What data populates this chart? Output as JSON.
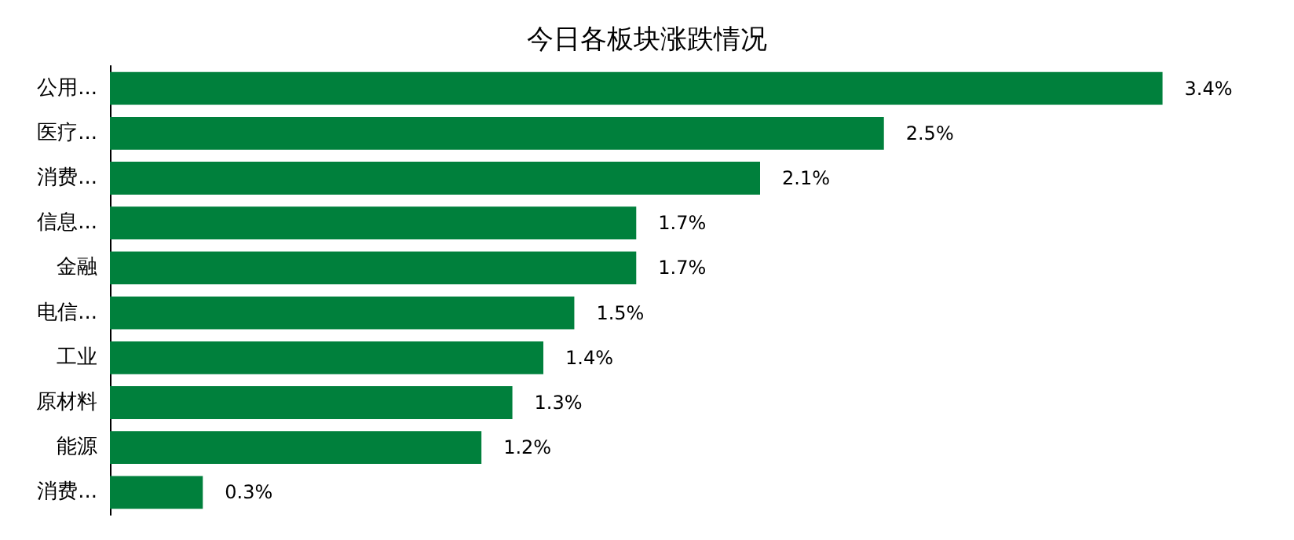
{
  "chart_data": {
    "type": "bar",
    "orientation": "horizontal",
    "title": "今日各板块涨跌情况",
    "categories": [
      "公用...",
      "医疗...",
      "消费...",
      "信息...",
      "金融",
      "电信...",
      "工业",
      "原材料",
      "能源",
      "消费..."
    ],
    "values": [
      3.4,
      2.5,
      2.1,
      1.7,
      1.7,
      1.5,
      1.4,
      1.3,
      1.2,
      0.3
    ],
    "value_labels": [
      "3.4%",
      "2.5%",
      "2.1%",
      "1.7%",
      "1.7%",
      "1.5%",
      "1.4%",
      "1.3%",
      "1.2%",
      "0.3%"
    ],
    "color": "#00803c"
  }
}
